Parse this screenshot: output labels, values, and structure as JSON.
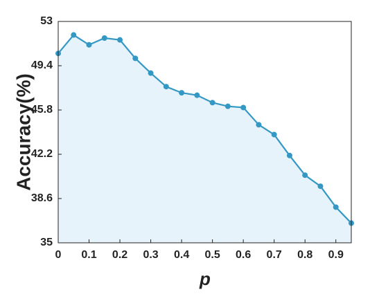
{
  "chart_data": {
    "type": "line",
    "x_label": "p",
    "y_label": "Accuracy(%)",
    "x": [
      0,
      0.05,
      0.1,
      0.15,
      0.2,
      0.25,
      0.3,
      0.35,
      0.4,
      0.45,
      0.5,
      0.55,
      0.6,
      0.65,
      0.7,
      0.75,
      0.8,
      0.85,
      0.9,
      0.95
    ],
    "series": [
      {
        "color": "#3398c4",
        "fill": "#e7f3fa",
        "values": [
          50.4,
          51.9,
          51.1,
          51.65,
          51.5,
          50.0,
          48.8,
          47.7,
          47.2,
          47.0,
          46.4,
          46.1,
          46.0,
          44.6,
          43.8,
          42.1,
          40.5,
          39.6,
          37.9,
          36.6
        ]
      }
    ],
    "xlim": [
      0,
      0.95
    ],
    "xticks": [
      0,
      0.1,
      0.2,
      0.3,
      0.4,
      0.5,
      0.6,
      0.7,
      0.8,
      0.9
    ],
    "ylim": [
      35,
      53
    ],
    "yticks": [
      35,
      38.6,
      42.2,
      45.8,
      49.4,
      53
    ]
  }
}
